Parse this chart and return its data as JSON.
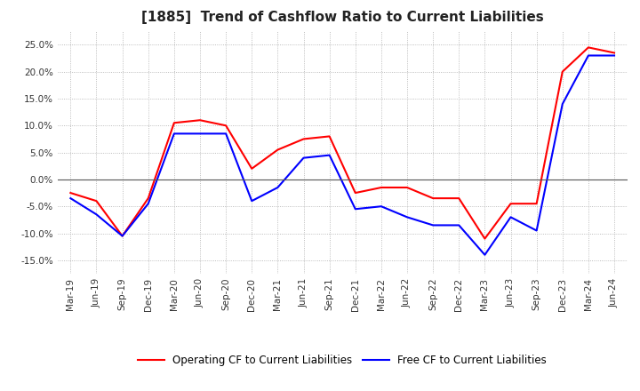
{
  "title": "[1885]  Trend of Cashflow Ratio to Current Liabilities",
  "x_labels": [
    "Mar-19",
    "Jun-19",
    "Sep-19",
    "Dec-19",
    "Mar-20",
    "Jun-20",
    "Sep-20",
    "Dec-20",
    "Mar-21",
    "Jun-21",
    "Sep-21",
    "Dec-21",
    "Mar-22",
    "Jun-22",
    "Sep-22",
    "Dec-22",
    "Mar-23",
    "Jun-23",
    "Sep-23",
    "Dec-23",
    "Mar-24",
    "Jun-24"
  ],
  "operating_cf": [
    -2.5,
    -4.0,
    -10.5,
    -3.5,
    10.5,
    11.0,
    10.0,
    2.0,
    5.5,
    7.5,
    8.0,
    -2.5,
    -1.5,
    -1.5,
    -3.5,
    -3.5,
    -11.0,
    -4.5,
    -4.5,
    20.0,
    24.5,
    23.5
  ],
  "free_cf": [
    -3.5,
    -6.5,
    -10.5,
    -4.5,
    8.5,
    8.5,
    8.5,
    -4.0,
    -1.5,
    4.0,
    4.5,
    -5.5,
    -5.0,
    -7.0,
    -8.5,
    -8.5,
    -14.0,
    -7.0,
    -9.5,
    14.0,
    23.0,
    23.0
  ],
  "ylim": [
    -17.5,
    27.5
  ],
  "yticks": [
    -15.0,
    -10.0,
    -5.0,
    0.0,
    5.0,
    10.0,
    15.0,
    20.0,
    25.0
  ],
  "operating_color": "#ff0000",
  "free_color": "#0000ff",
  "grid_color": "#aaaaaa",
  "background_color": "#ffffff",
  "title_fontsize": 11,
  "legend_labels": [
    "Operating CF to Current Liabilities",
    "Free CF to Current Liabilities"
  ]
}
